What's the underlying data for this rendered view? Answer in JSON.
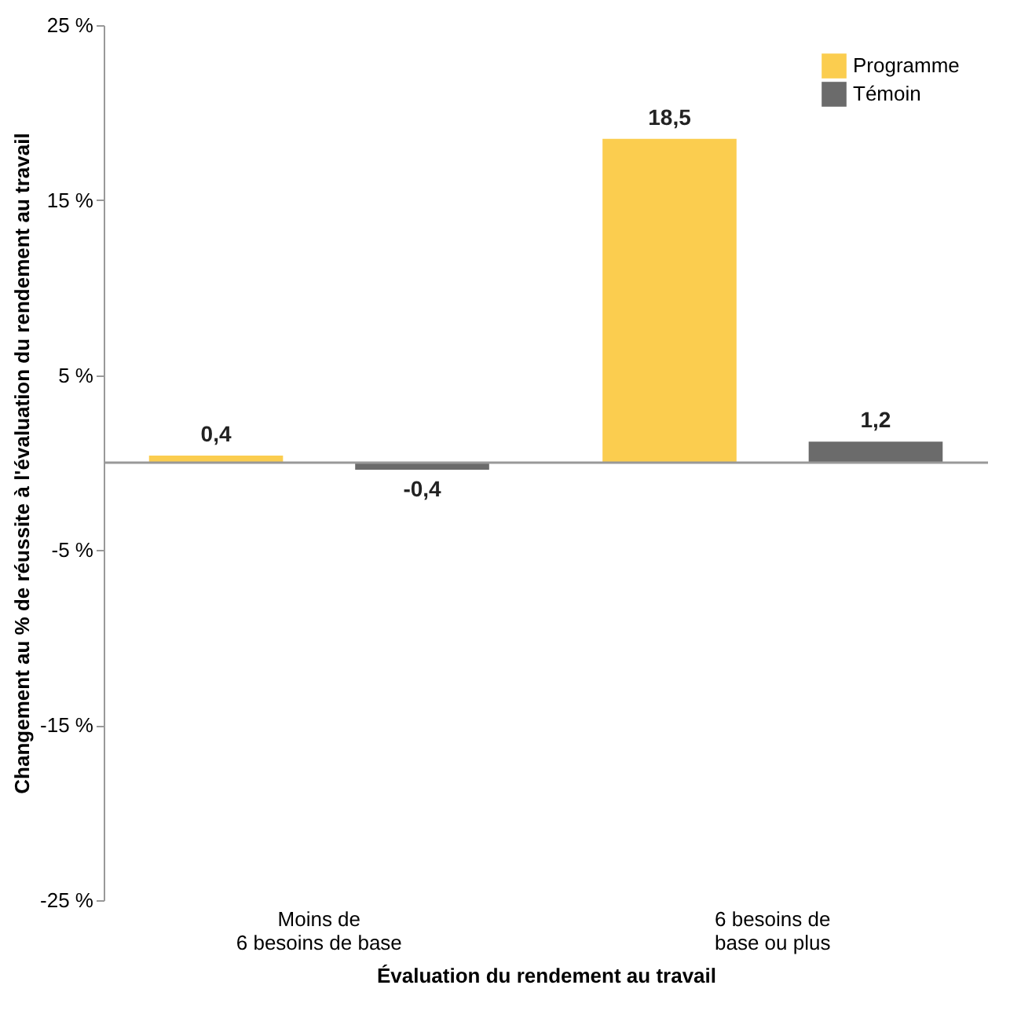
{
  "chart_data": {
    "type": "bar",
    "xlabel": "Évaluation du rendement au travail",
    "ylabel": "Changement au % de réussite à l'évaluation du rendement au travail",
    "categories": [
      "Moins de\n6 besoins de base",
      "6 besoins de\nbase ou plus"
    ],
    "series": [
      {
        "name": "Programme",
        "color": "#fbcd4f",
        "values": [
          0.4,
          18.5
        ],
        "value_labels": [
          "0,4",
          "18,5"
        ]
      },
      {
        "name": "Témoin",
        "color": "#6b6b6b",
        "values": [
          -0.4,
          1.2
        ],
        "value_labels": [
          "-0,4",
          "1,2"
        ]
      }
    ],
    "ylim": [
      -25,
      25
    ],
    "yticks": [
      {
        "value": 25,
        "label": "25 %"
      },
      {
        "value": 15,
        "label": "15 %"
      },
      {
        "value": 5,
        "label": "5 %"
      },
      {
        "value": -5,
        "label": "-5 %"
      },
      {
        "value": -15,
        "label": "-15 %"
      },
      {
        "value": -25,
        "label": "-25 %"
      }
    ],
    "ref_lines": [
      {
        "axis": "y",
        "value": 0,
        "color": "#999999"
      }
    ],
    "legend": "top right"
  }
}
